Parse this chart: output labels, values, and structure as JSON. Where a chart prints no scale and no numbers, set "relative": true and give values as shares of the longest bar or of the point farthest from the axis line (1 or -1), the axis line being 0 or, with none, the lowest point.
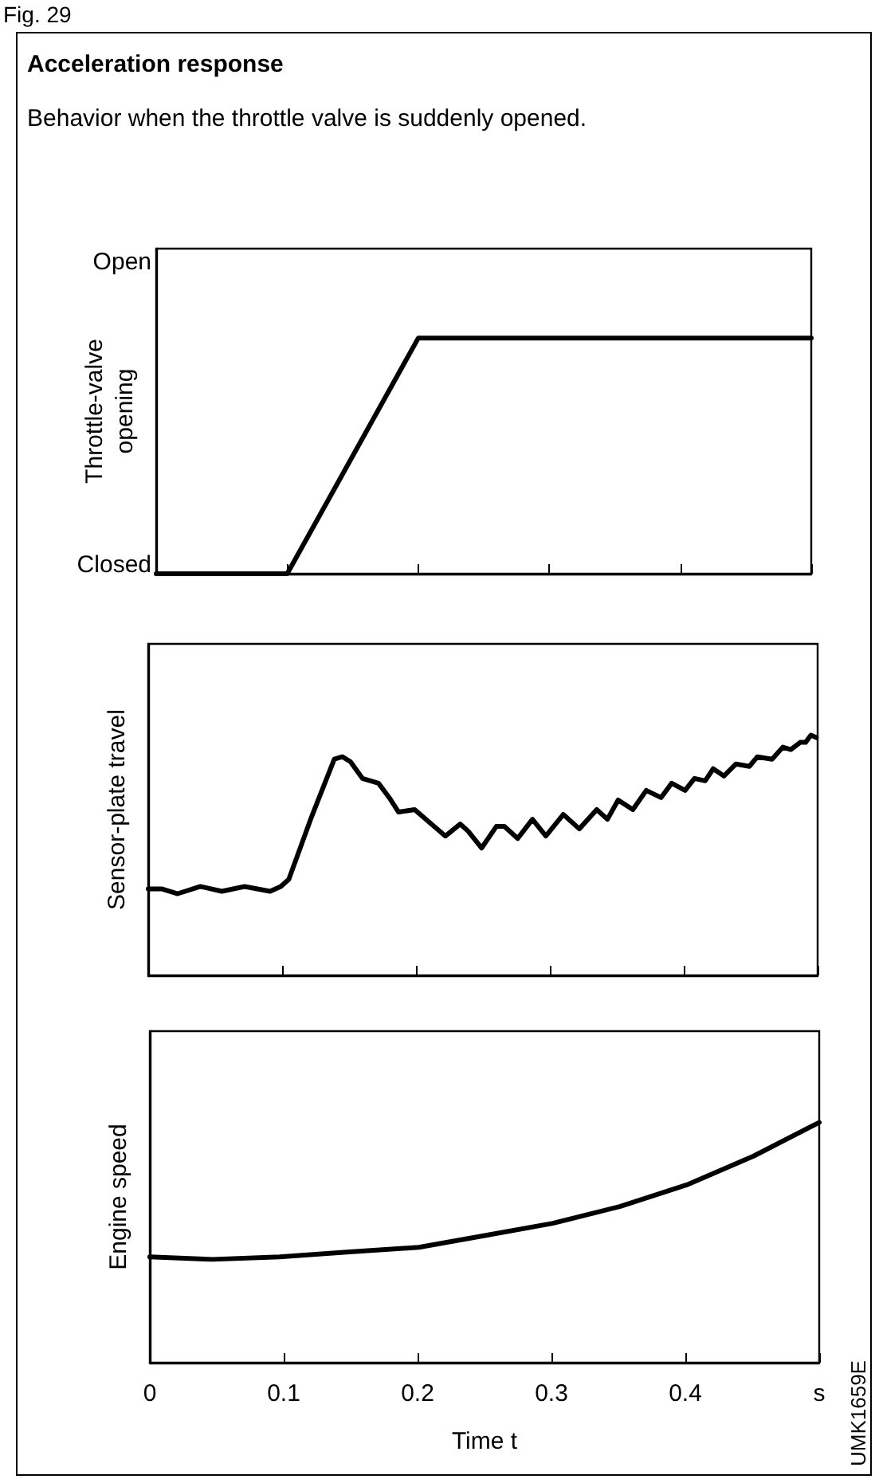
{
  "chart_data": [
    {
      "type": "line",
      "relative": true,
      "title": "Acceleration response",
      "subtitle": "Behavior when the throttle valve is suddenly opened.",
      "annotations": [
        "Fig. 29",
        "Open",
        "Closed"
      ],
      "ylabel": "Throttle-valve\nopening",
      "categories": [
        null,
        null,
        null,
        null,
        null,
        null
      ],
      "tick_labels": false,
      "grid": false,
      "marker": "none",
      "series": [
        {
          "color": "#000000",
          "values": [
            0,
            0,
            1,
            1,
            1,
            1
          ]
        }
      ]
    },
    {
      "type": "line",
      "relative": true,
      "ylabel": "Sensor-plate travel",
      "xlim": [
        0,
        0.5
      ],
      "xticks": [
        {
          "value": 0,
          "label": null
        },
        {
          "value": 0.1,
          "label": null
        },
        {
          "value": 0.2,
          "label": null
        },
        {
          "value": 0.3,
          "label": null
        },
        {
          "value": 0.4,
          "label": null
        },
        {
          "value": 0.5,
          "label": null
        }
      ],
      "tick_labels": false,
      "grid": false,
      "marker": "none",
      "series": [
        {
          "color": "#000000",
          "x": [
            0,
            0.01,
            0.022,
            0.039,
            0.055,
            0.072,
            0.091,
            0.099,
            0.105,
            0.122,
            0.139,
            0.145,
            0.151,
            0.16,
            0.172,
            0.18,
            0.187,
            0.199,
            0.222,
            0.233,
            0.239,
            0.249,
            0.26,
            0.266,
            0.276,
            0.287,
            0.297,
            0.31,
            0.322,
            0.335,
            0.343,
            0.351,
            0.362,
            0.372,
            0.383,
            0.391,
            0.401,
            0.408,
            0.416,
            0.422,
            0.43,
            0.439,
            0.449,
            0.455,
            0.466,
            0.474,
            0.48,
            0.487,
            0.491,
            0.495,
            0.499
          ],
          "values": [
            0.36,
            0.36,
            0.34,
            0.37,
            0.35,
            0.37,
            0.35,
            0.37,
            0.4,
            0.66,
            0.9,
            0.91,
            0.89,
            0.82,
            0.8,
            0.74,
            0.68,
            0.69,
            0.58,
            0.63,
            0.6,
            0.53,
            0.62,
            0.62,
            0.57,
            0.65,
            0.58,
            0.67,
            0.61,
            0.69,
            0.65,
            0.73,
            0.69,
            0.77,
            0.74,
            0.8,
            0.77,
            0.82,
            0.81,
            0.86,
            0.83,
            0.88,
            0.87,
            0.91,
            0.9,
            0.95,
            0.94,
            0.97,
            0.97,
            1,
            0.99
          ]
        }
      ]
    },
    {
      "type": "line",
      "relative": true,
      "ylabel": "Engine speed",
      "xlabel": "Time t",
      "annotations": [
        "UMK1659E"
      ],
      "xlim": [
        0,
        0.5
      ],
      "xticks": [
        0,
        0.1,
        0.2,
        0.3,
        0.4,
        {
          "value": 0.5,
          "label": "s"
        }
      ],
      "tick_labels": "x",
      "grid": false,
      "marker": "none",
      "series": [
        {
          "color": "#000000",
          "x": [
            0,
            0.047,
            0.097,
            0.147,
            0.201,
            0.251,
            0.301,
            0.351,
            0.401,
            0.451,
            0.5
          ],
          "values": [
            0.44,
            0.43,
            0.44,
            0.46,
            0.48,
            0.53,
            0.58,
            0.65,
            0.74,
            0.86,
            1
          ]
        }
      ]
    }
  ]
}
